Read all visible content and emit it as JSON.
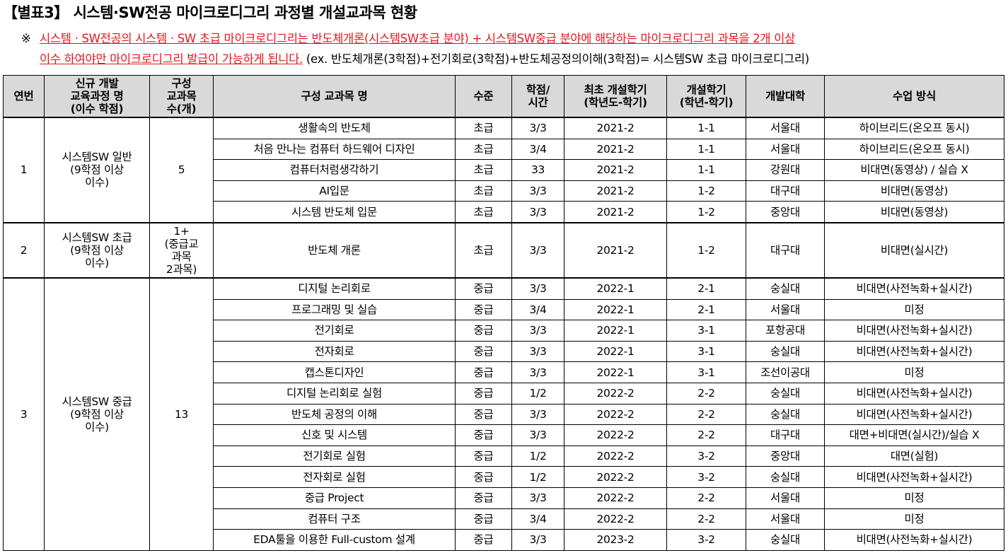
{
  "title": "【별표3】 시스템·SW전공 마이크로디그리 과정별 개설교과목 현황",
  "note": {
    "mark": "※",
    "red_line1": "시스템 · SW전공의 시스템 · SW 초급 마이크로디그리는 반도체개론(시스템SW초급 분야) + 시스템SW중급 분야에 해당하는 마이크로디그리 과목을 2개 이상",
    "red_line2": "이수 하여야만 마이크로디그리 발급이 가능하게 됩니다.",
    "example": " (ex. 반도체개론(3학점)+전기회로(3학점)+반도체공정의이해(3학점)= 시스템SW 초급 마이크로디그리)"
  },
  "headers": [
    "연번",
    "신규 개발\n교육과정 명\n(이수 학점)",
    "구성\n교과목\n수(개)",
    "구성 교과목 명",
    "수준",
    "학점/\n시간",
    "최초 개설학기\n(학년도-학기)",
    "개설학기\n(학년-학기)",
    "개발대학",
    "수업 방식"
  ],
  "groups": [
    {
      "no": "1",
      "program": "시스템SW 일반\n(9학점 이상\n이수)",
      "count": "5",
      "courses": [
        [
          "생활속의 반도체",
          "초급",
          "3/3",
          "2021-2",
          "1-1",
          "서울대",
          "하이브리드(온오프 동시)"
        ],
        [
          "처음 만나는 컴퓨터 하드웨어 디자인",
          "초급",
          "3/4",
          "2021-2",
          "1-1",
          "서울대",
          "하이브리드(온오프 동시)"
        ],
        [
          "컴퓨터처럼생각하기",
          "초급",
          "33",
          "2021-2",
          "1-1",
          "강원대",
          "비대면(동영상) / 실습 X"
        ],
        [
          "AI입문",
          "초급",
          "3/3",
          "2021-2",
          "1-2",
          "대구대",
          "비대면(동영상)"
        ],
        [
          "시스템 반도체 입문",
          "초급",
          "3/3",
          "2021-2",
          "1-2",
          "중앙대",
          "비대면(동영상)"
        ]
      ]
    },
    {
      "no": "2",
      "program": "시스템SW 초급\n(9학점 이상\n이수)",
      "count": "1+\n(중급교\n과목\n2과목)",
      "courses": [
        [
          "반도체 개론",
          "초급",
          "3/3",
          "2021-2",
          "1-2",
          "대구대",
          "비대면(실시간)"
        ]
      ]
    },
    {
      "no": "3",
      "program": "시스템SW 중급\n(9학점 이상\n이수)",
      "count": "13",
      "courses": [
        [
          "디지털 논리회로",
          "중급",
          "3/3",
          "2022-1",
          "2-1",
          "숭실대",
          "비대면(사전녹화+실시간)"
        ],
        [
          "프로그래밍 및 실습",
          "중급",
          "3/4",
          "2022-1",
          "2-1",
          "서울대",
          "미정"
        ],
        [
          "전기회로",
          "중급",
          "3/3",
          "2022-1",
          "3-1",
          "포항공대",
          "비대면(사전녹화+실시간)"
        ],
        [
          "전자회로",
          "중급",
          "3/3",
          "2022-1",
          "3-1",
          "숭실대",
          "비대면(사전녹화+실시간)"
        ],
        [
          "캡스톤디자인",
          "중급",
          "3/3",
          "2022-1",
          "3-1",
          "조선이공대",
          "미정"
        ],
        [
          "디지털 논리회로 실험",
          "중급",
          "1/2",
          "2022-2",
          "2-2",
          "숭실대",
          "비대면(사전녹화+실시간)"
        ],
        [
          "반도체 공정의 이해",
          "중급",
          "3/3",
          "2022-2",
          "2-2",
          "숭실대",
          "비대면(사전녹화+실시간)"
        ],
        [
          "신호 및 시스템",
          "중급",
          "3/3",
          "2022-2",
          "2-2",
          "대구대",
          "대면+비대면(실시간)/실습 X"
        ],
        [
          "전기회로 실험",
          "중급",
          "1/2",
          "2022-2",
          "3-2",
          "중앙대",
          "대면(실험)"
        ],
        [
          "전자회로 실험",
          "중급",
          "1/2",
          "2022-2",
          "3-2",
          "숭실대",
          "비대면(사전녹화+실시간)"
        ],
        [
          "중급 Project",
          "중급",
          "3/3",
          "2022-2",
          "2-2",
          "서울대",
          "미정"
        ],
        [
          "컴퓨터 구조",
          "중급",
          "3/4",
          "2022-2",
          "2-2",
          "서울대",
          "미정"
        ],
        [
          "EDA툴을 이용한 Full-custom 설계",
          "중급",
          "3/3",
          "2023-2",
          "3-2",
          "숭실대",
          "비대면(사전녹화+실시간)"
        ]
      ]
    }
  ]
}
